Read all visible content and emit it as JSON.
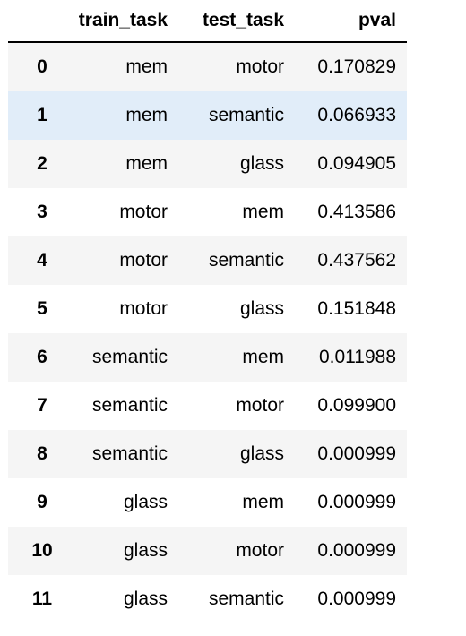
{
  "table": {
    "columns": [
      "",
      "train_task",
      "test_task",
      "pval"
    ],
    "rows": [
      {
        "index": "0",
        "train_task": "mem",
        "test_task": "motor",
        "pval": "0.170829"
      },
      {
        "index": "1",
        "train_task": "mem",
        "test_task": "semantic",
        "pval": "0.066933"
      },
      {
        "index": "2",
        "train_task": "mem",
        "test_task": "glass",
        "pval": "0.094905"
      },
      {
        "index": "3",
        "train_task": "motor",
        "test_task": "mem",
        "pval": "0.413586"
      },
      {
        "index": "4",
        "train_task": "motor",
        "test_task": "semantic",
        "pval": "0.437562"
      },
      {
        "index": "5",
        "train_task": "motor",
        "test_task": "glass",
        "pval": "0.151848"
      },
      {
        "index": "6",
        "train_task": "semantic",
        "test_task": "mem",
        "pval": "0.011988"
      },
      {
        "index": "7",
        "train_task": "semantic",
        "test_task": "motor",
        "pval": "0.099900"
      },
      {
        "index": "8",
        "train_task": "semantic",
        "test_task": "glass",
        "pval": "0.000999"
      },
      {
        "index": "9",
        "train_task": "glass",
        "test_task": "mem",
        "pval": "0.000999"
      },
      {
        "index": "10",
        "train_task": "glass",
        "test_task": "motor",
        "pval": "0.000999"
      },
      {
        "index": "11",
        "train_task": "glass",
        "test_task": "semantic",
        "pval": "0.000999"
      }
    ],
    "highlighted_row_index": "1"
  },
  "colors": {
    "row_odd": "#f5f5f5",
    "row_even": "#ffffff",
    "row_hover": "#e1edf9",
    "header_border": "#000000"
  }
}
